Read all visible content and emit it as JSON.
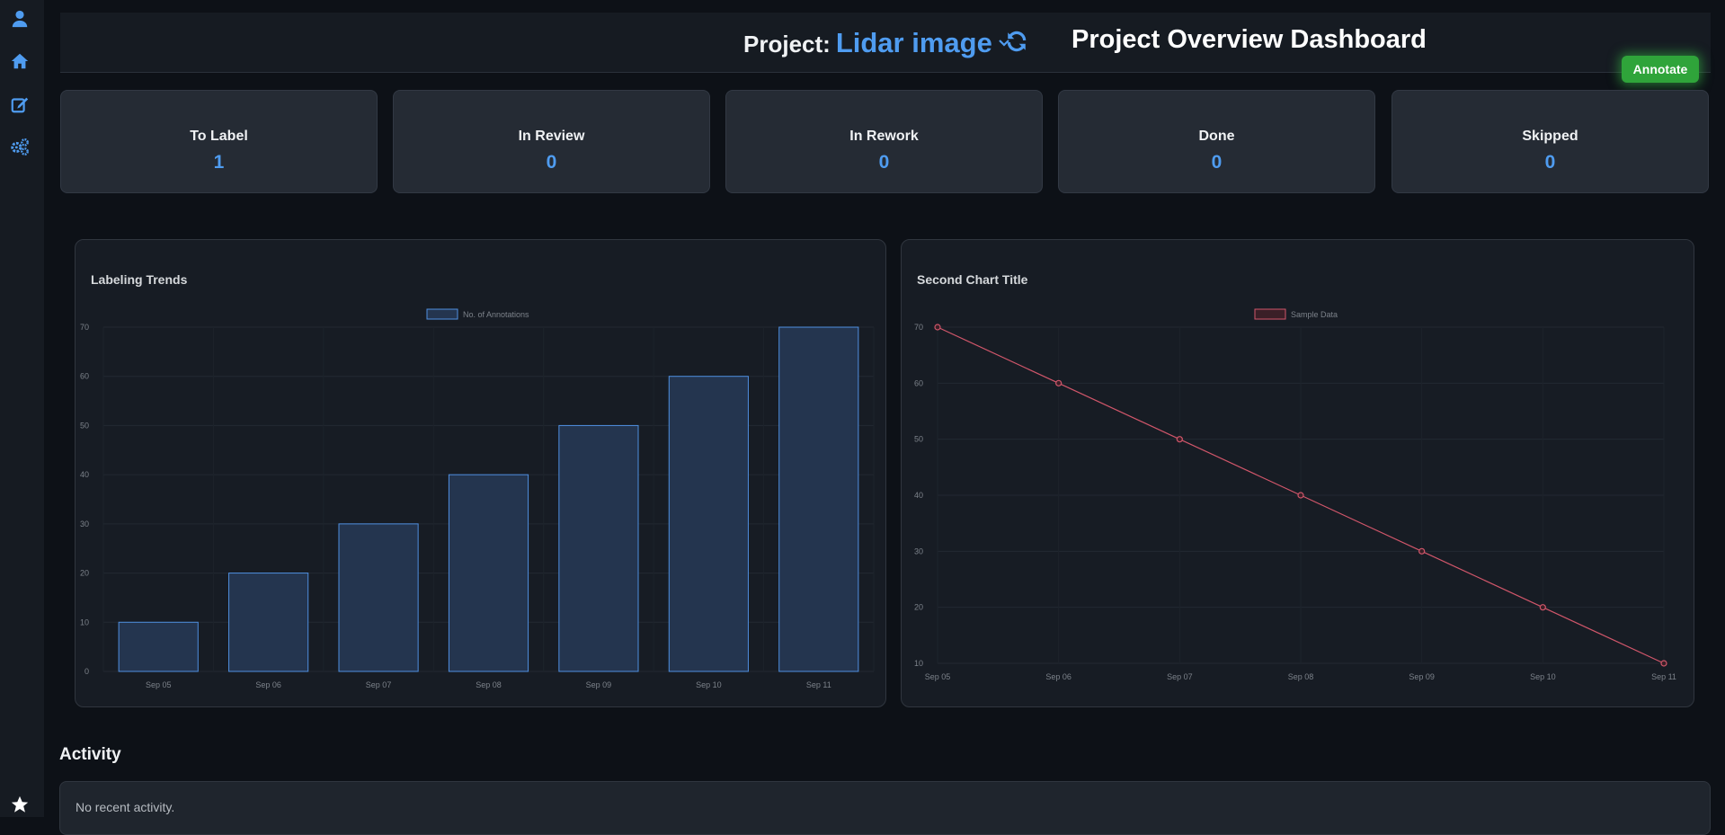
{
  "sidebar": {
    "items": [
      {
        "icon": "user-icon"
      },
      {
        "icon": "home-icon"
      },
      {
        "icon": "edit-icon"
      },
      {
        "icon": "settings-icon"
      },
      {
        "icon": "star-icon"
      }
    ]
  },
  "header": {
    "project_label": "Project:",
    "project_name": "Lidar image",
    "dashboard_title": "Project Overview Dashboard",
    "annotate_label": "Annotate"
  },
  "stats": [
    {
      "label": "To Label",
      "value": "1"
    },
    {
      "label": "In Review",
      "value": "0"
    },
    {
      "label": "In Rework",
      "value": "0"
    },
    {
      "label": "Done",
      "value": "0"
    },
    {
      "label": "Skipped",
      "value": "0"
    }
  ],
  "colors": {
    "accent": "#4f9cf0",
    "bar_fill": "#24354f",
    "bar_stroke": "#4f8fe0",
    "line": "#d0566a",
    "annotate_green": "#2fa43a"
  },
  "chart_data": [
    {
      "type": "bar",
      "title": "Labeling Trends",
      "categories": [
        "Sep 05",
        "Sep 06",
        "Sep 07",
        "Sep 08",
        "Sep 09",
        "Sep 10",
        "Sep 11"
      ],
      "series": [
        {
          "name": "No. of Annotations",
          "values": [
            10,
            20,
            30,
            40,
            50,
            60,
            70
          ]
        }
      ],
      "ylim": [
        0,
        70
      ],
      "yticks": [
        0,
        10,
        20,
        30,
        40,
        50,
        60,
        70
      ],
      "legend": "top-center",
      "grid": true
    },
    {
      "type": "line",
      "title": "Second Chart Title",
      "categories": [
        "Sep 05",
        "Sep 06",
        "Sep 07",
        "Sep 08",
        "Sep 09",
        "Sep 10",
        "Sep 11"
      ],
      "series": [
        {
          "name": "Sample Data",
          "values": [
            70,
            60,
            50,
            40,
            30,
            20,
            10
          ]
        }
      ],
      "ylim": [
        10,
        70
      ],
      "yticks": [
        10,
        20,
        30,
        40,
        50,
        60,
        70
      ],
      "legend": "top-center",
      "grid": true
    }
  ],
  "activity": {
    "title": "Activity",
    "empty_text": "No recent activity."
  }
}
